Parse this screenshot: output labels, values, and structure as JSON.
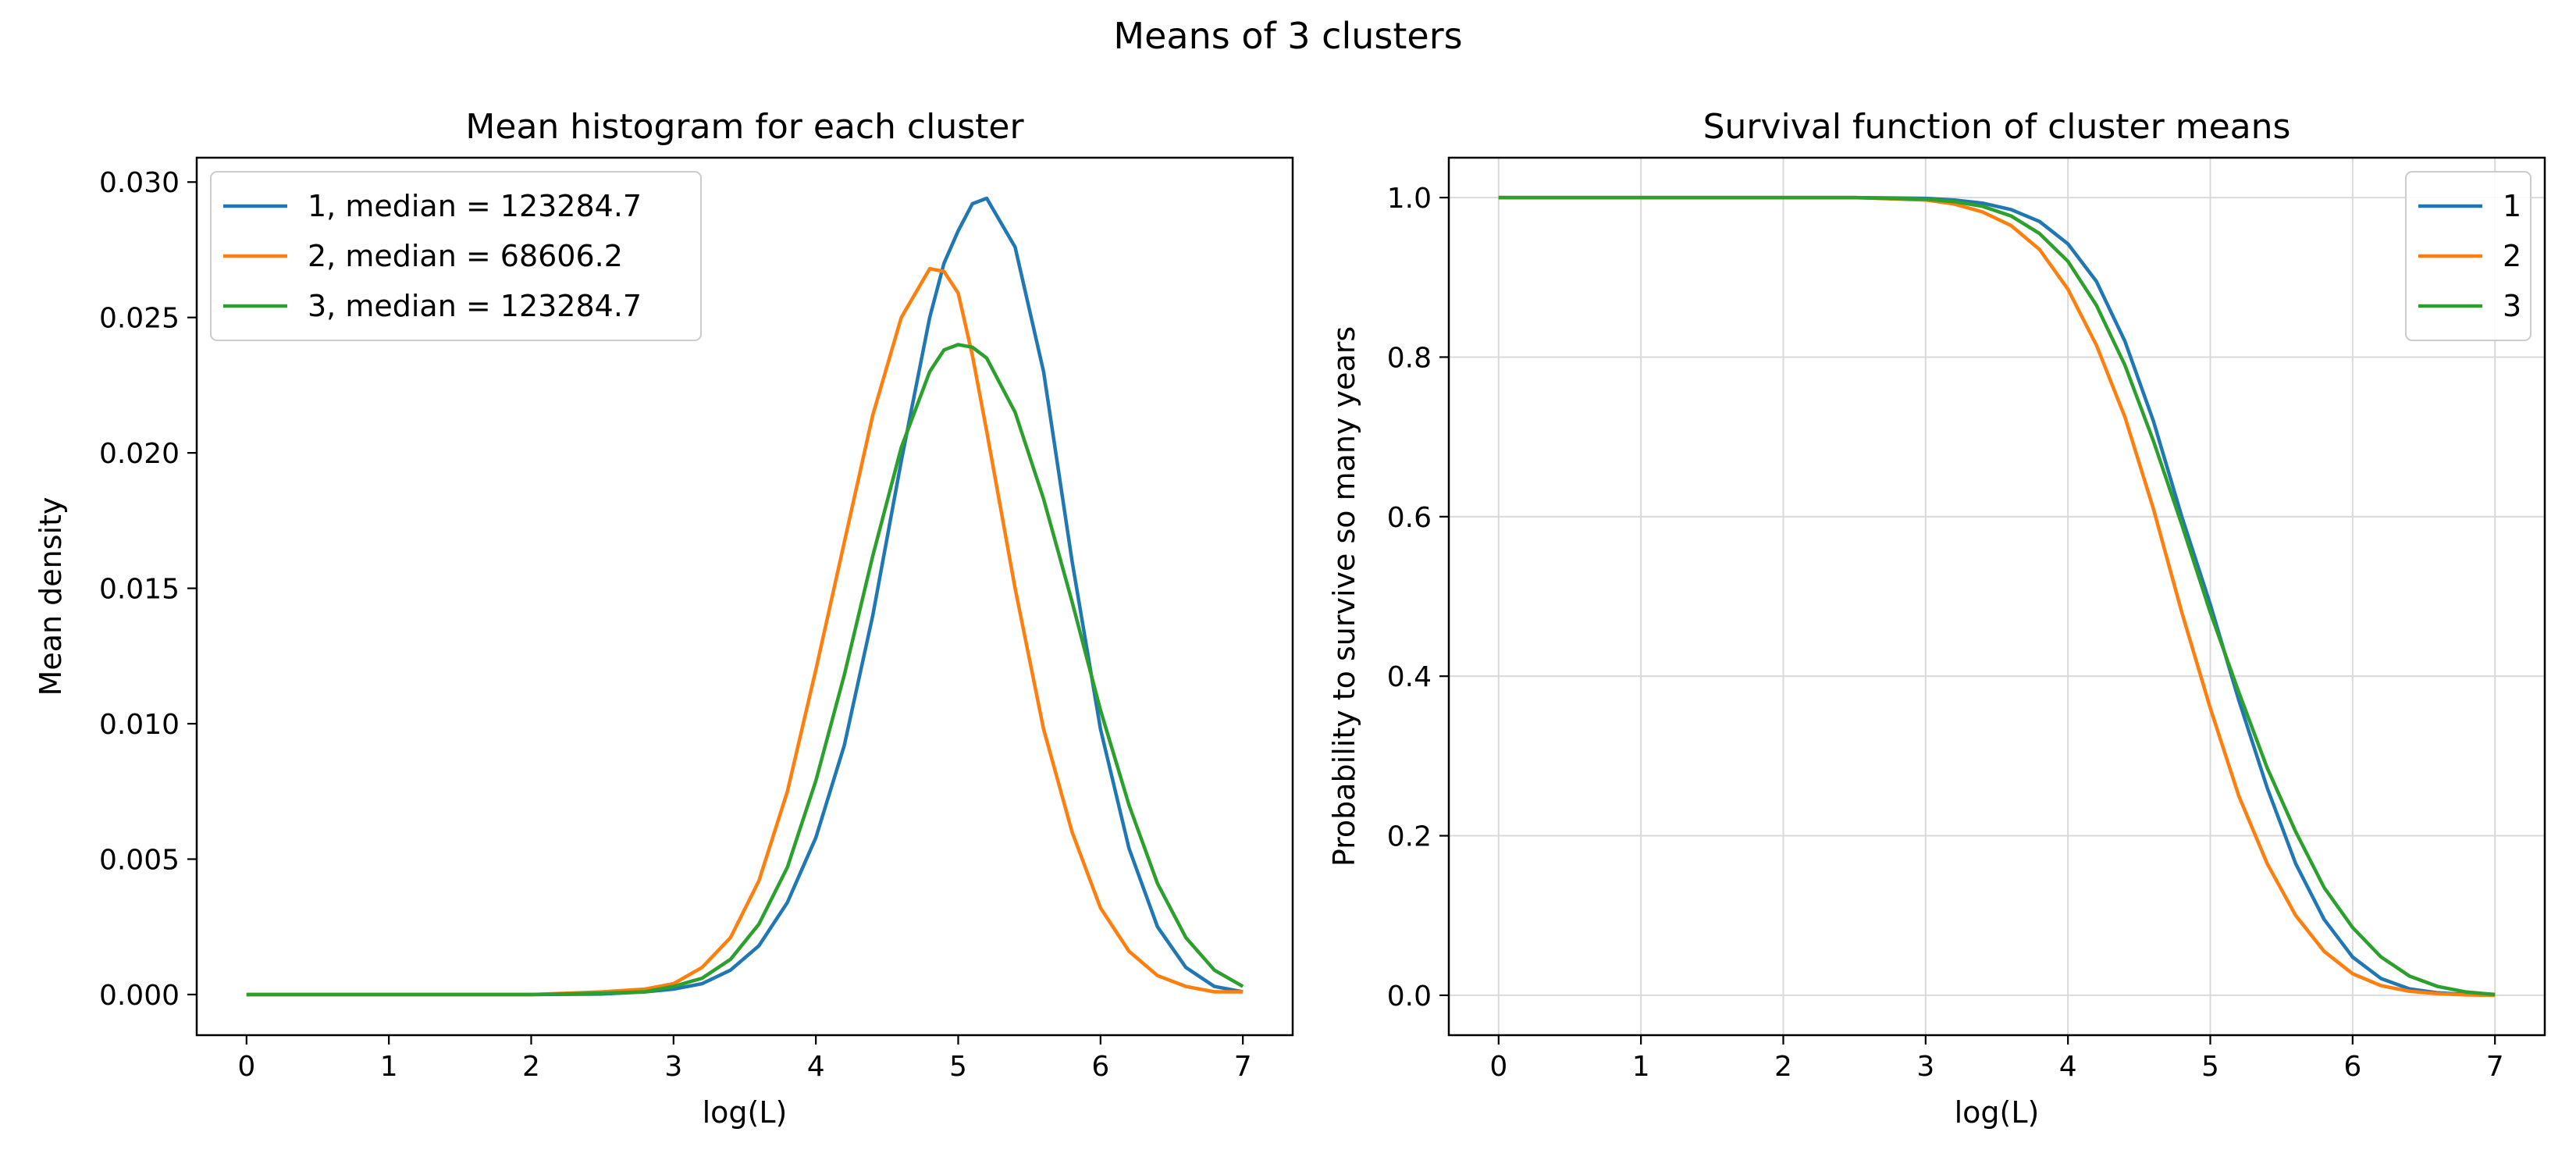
{
  "figure": {
    "suptitle": "Means of 3 clusters"
  },
  "colors": {
    "1": "#1f77b4",
    "2": "#ff7f0e",
    "3": "#2ca02c",
    "grid": "#d9d9d9"
  },
  "chart_data": [
    {
      "type": "line",
      "title": "Mean histogram for each cluster",
      "xlabel": "log(L)",
      "ylabel": "Mean density",
      "xlim": [
        -0.35,
        7.35
      ],
      "ylim": [
        -0.0015,
        0.0309
      ],
      "xticks": [
        0,
        1,
        2,
        3,
        4,
        5,
        6,
        7
      ],
      "yticks": [
        0.0,
        0.005,
        0.01,
        0.015,
        0.02,
        0.025,
        0.03
      ],
      "ytick_labels": [
        "0.000",
        "0.005",
        "0.010",
        "0.015",
        "0.020",
        "0.025",
        "0.030"
      ],
      "grid": false,
      "legend_position": "upper-left",
      "x": [
        0.0,
        1.0,
        2.0,
        2.5,
        2.8,
        3.0,
        3.2,
        3.4,
        3.6,
        3.8,
        4.0,
        4.2,
        4.4,
        4.6,
        4.8,
        4.9,
        5.0,
        5.1,
        5.2,
        5.4,
        5.6,
        5.8,
        6.0,
        6.2,
        6.4,
        6.6,
        6.8,
        7.0
      ],
      "series": [
        {
          "name": "1, median = 123284.7",
          "color_key": "1",
          "values": [
            0.0,
            0.0,
            0.0,
            2e-05,
            0.0001,
            0.0002,
            0.0004,
            0.0009,
            0.0018,
            0.0034,
            0.0058,
            0.0092,
            0.014,
            0.0197,
            0.025,
            0.027,
            0.0282,
            0.0292,
            0.0294,
            0.0276,
            0.023,
            0.016,
            0.0098,
            0.0054,
            0.0025,
            0.001,
            0.0003,
            0.0001
          ]
        },
        {
          "name": "2, median = 68606.2",
          "color_key": "2",
          "values": [
            0.0,
            0.0,
            0.0,
            0.0001,
            0.0002,
            0.0004,
            0.001,
            0.0021,
            0.0042,
            0.0075,
            0.012,
            0.0167,
            0.0214,
            0.025,
            0.0268,
            0.0267,
            0.0259,
            0.0236,
            0.0208,
            0.015,
            0.0098,
            0.006,
            0.0032,
            0.0016,
            0.0007,
            0.0003,
            0.0001,
            0.0001
          ]
        },
        {
          "name": "3, median = 123284.7",
          "color_key": "3",
          "values": [
            0.0,
            0.0,
            0.0,
            5e-05,
            0.0001,
            0.0003,
            0.0006,
            0.0013,
            0.0026,
            0.0047,
            0.0079,
            0.0118,
            0.0162,
            0.0202,
            0.023,
            0.0238,
            0.024,
            0.0239,
            0.0235,
            0.0215,
            0.0183,
            0.0145,
            0.0105,
            0.007,
            0.0041,
            0.0021,
            0.0009,
            0.0003
          ]
        }
      ]
    },
    {
      "type": "line",
      "title": "Survival function of cluster means",
      "xlabel": "log(L)",
      "ylabel": "Probability to survive so many years",
      "xlim": [
        -0.35,
        7.35
      ],
      "ylim": [
        -0.05,
        1.05
      ],
      "xticks": [
        0,
        1,
        2,
        3,
        4,
        5,
        6,
        7
      ],
      "yticks": [
        0.0,
        0.2,
        0.4,
        0.6,
        0.8,
        1.0
      ],
      "ytick_labels": [
        "0.0",
        "0.2",
        "0.4",
        "0.6",
        "0.8",
        "1.0"
      ],
      "grid": true,
      "legend_position": "upper-right",
      "x": [
        0.0,
        1.0,
        2.0,
        2.5,
        3.0,
        3.2,
        3.4,
        3.6,
        3.8,
        4.0,
        4.2,
        4.4,
        4.6,
        4.8,
        5.0,
        5.2,
        5.4,
        5.6,
        5.8,
        6.0,
        6.2,
        6.4,
        6.6,
        6.8,
        7.0
      ],
      "series": [
        {
          "name": "1",
          "color_key": "1",
          "values": [
            1.0,
            1.0,
            1.0,
            1.0,
            0.999,
            0.997,
            0.993,
            0.985,
            0.97,
            0.942,
            0.895,
            0.82,
            0.72,
            0.6,
            0.49,
            0.37,
            0.26,
            0.165,
            0.095,
            0.048,
            0.021,
            0.008,
            0.003,
            0.001,
            0.0
          ]
        },
        {
          "name": "2",
          "color_key": "2",
          "values": [
            1.0,
            1.0,
            1.0,
            1.0,
            0.997,
            0.992,
            0.982,
            0.965,
            0.935,
            0.885,
            0.815,
            0.725,
            0.61,
            0.48,
            0.36,
            0.25,
            0.165,
            0.1,
            0.055,
            0.027,
            0.012,
            0.005,
            0.002,
            0.0005,
            0.0
          ]
        },
        {
          "name": "3",
          "color_key": "3",
          "values": [
            1.0,
            1.0,
            1.0,
            1.0,
            0.998,
            0.995,
            0.989,
            0.977,
            0.955,
            0.92,
            0.865,
            0.79,
            0.695,
            0.59,
            0.48,
            0.38,
            0.285,
            0.205,
            0.135,
            0.085,
            0.048,
            0.024,
            0.011,
            0.004,
            0.001
          ]
        }
      ]
    }
  ]
}
